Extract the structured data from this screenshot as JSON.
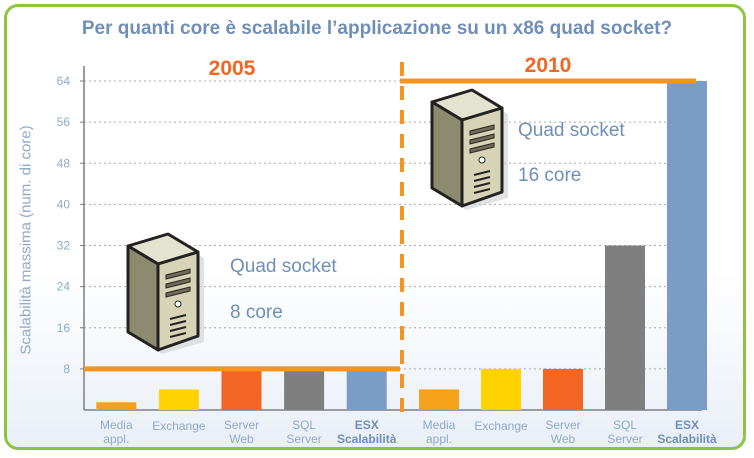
{
  "title": "Per quanti core è scalabile l’applicazione su un x86 quad socket?",
  "chart_data": [
    {
      "type": "bar",
      "period": "2005",
      "categories": [
        [
          "Media",
          "appl."
        ],
        [
          "Exchange"
        ],
        [
          "Server",
          "Web"
        ],
        [
          "SQL",
          "Server"
        ],
        [
          "ESX",
          "Scalabilità"
        ]
      ],
      "values": [
        1.5,
        4,
        8,
        8,
        8
      ],
      "colors": [
        "#f7a21b",
        "#ffd200",
        "#f26522",
        "#7f7f7f",
        "#7a9cc6"
      ],
      "bold_category": [
        false,
        false,
        false,
        false,
        true
      ],
      "reference_line": 8,
      "callout": [
        "Quad socket",
        "8 core"
      ]
    },
    {
      "type": "bar",
      "period": "2010",
      "categories": [
        [
          "Media",
          "appl."
        ],
        [
          "Exchange"
        ],
        [
          "Server",
          "Web"
        ],
        [
          "SQL",
          "Server"
        ],
        [
          "ESX",
          "Scalabilità"
        ]
      ],
      "values": [
        4,
        8,
        8,
        32,
        64
      ],
      "colors": [
        "#f7a21b",
        "#ffd200",
        "#f26522",
        "#7f7f7f",
        "#7a9cc6"
      ],
      "bold_category": [
        false,
        false,
        false,
        false,
        true
      ],
      "reference_line": 64,
      "callout": [
        "Quad socket",
        "16 core"
      ]
    }
  ],
  "yaxis": {
    "label": "Scalabilità massima (num. di core)",
    "ticks": [
      8,
      16,
      24,
      32,
      40,
      48,
      56,
      64
    ],
    "ylim": [
      0,
      64
    ],
    "grid": "dashed"
  },
  "colors": {
    "frame": "#8cc63f",
    "title": "#6f8fb7",
    "period": "#f26522",
    "reference_line": "#f7941d",
    "divider": "#f7941d",
    "axis_text": "#8fa9c8"
  },
  "icons": [
    "server-tower-icon",
    "server-tower-icon"
  ]
}
